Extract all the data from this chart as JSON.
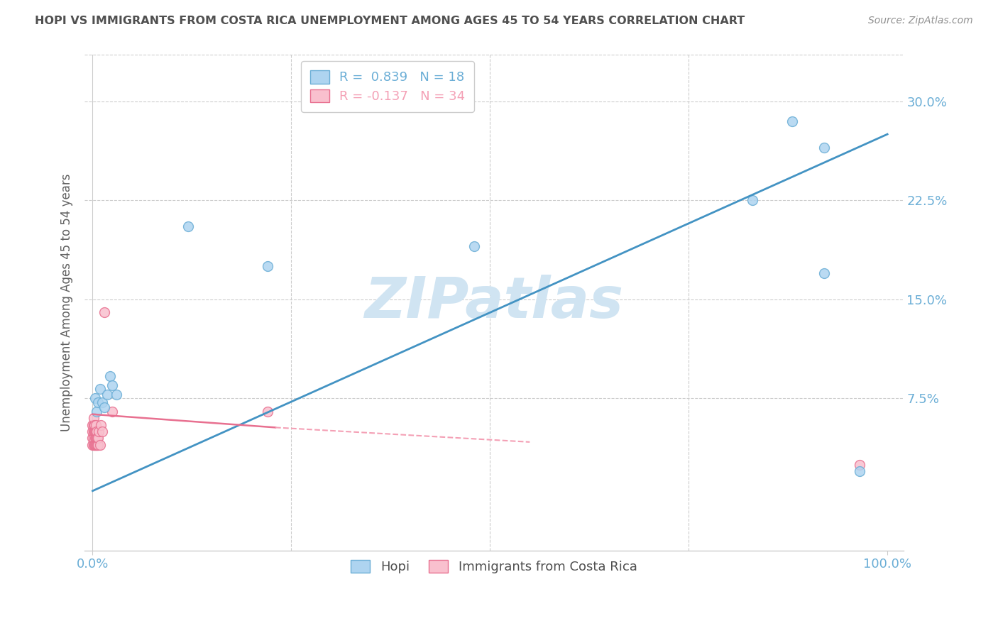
{
  "title": "HOPI VS IMMIGRANTS FROM COSTA RICA UNEMPLOYMENT AMONG AGES 45 TO 54 YEARS CORRELATION CHART",
  "source": "Source: ZipAtlas.com",
  "ylabel": "Unemployment Among Ages 45 to 54 years",
  "xlim": [
    -0.01,
    1.02
  ],
  "ylim": [
    -0.04,
    0.335
  ],
  "xticks": [
    0.0,
    1.0
  ],
  "xtick_labels": [
    "0.0%",
    "100.0%"
  ],
  "yticks": [
    0.075,
    0.15,
    0.225,
    0.3
  ],
  "ytick_labels": [
    "7.5%",
    "15.0%",
    "22.5%",
    "30.0%"
  ],
  "legend_entries": [
    {
      "label": "R =  0.839   N = 18",
      "color": "#6BAED6"
    },
    {
      "label": "R = -0.137   N = 34",
      "color": "#F4A0B5"
    }
  ],
  "hopi_x": [
    0.003,
    0.005,
    0.007,
    0.009,
    0.012,
    0.015,
    0.018,
    0.022,
    0.03,
    0.12,
    0.22,
    0.48,
    0.83,
    0.88,
    0.92,
    0.92,
    0.965,
    0.025
  ],
  "hopi_y": [
    0.075,
    0.065,
    0.072,
    0.082,
    0.072,
    0.068,
    0.078,
    0.092,
    0.078,
    0.205,
    0.175,
    0.19,
    0.225,
    0.285,
    0.265,
    0.17,
    0.02,
    0.085
  ],
  "costa_rica_x": [
    0.0,
    0.0,
    0.0,
    0.0,
    0.001,
    0.001,
    0.001,
    0.001,
    0.001,
    0.002,
    0.002,
    0.002,
    0.003,
    0.003,
    0.003,
    0.004,
    0.004,
    0.004,
    0.004,
    0.005,
    0.005,
    0.005,
    0.006,
    0.006,
    0.007,
    0.007,
    0.008,
    0.009,
    0.01,
    0.012,
    0.015,
    0.025,
    0.22,
    0.965
  ],
  "costa_rica_y": [
    0.04,
    0.045,
    0.05,
    0.055,
    0.04,
    0.045,
    0.05,
    0.055,
    0.06,
    0.04,
    0.05,
    0.055,
    0.04,
    0.045,
    0.05,
    0.04,
    0.045,
    0.05,
    0.055,
    0.04,
    0.045,
    0.05,
    0.04,
    0.045,
    0.04,
    0.045,
    0.05,
    0.04,
    0.055,
    0.05,
    0.14,
    0.065,
    0.065,
    0.025
  ],
  "hopi_color": "#AED4F0",
  "hopi_edge_color": "#6BAED6",
  "costa_rica_color": "#F9C0CE",
  "costa_rica_edge_color": "#E87090",
  "blue_line_color": "#4393C3",
  "pink_line_solid_color": "#E87090",
  "pink_line_dash_color": "#F4A0B5",
  "watermark": "ZIPatlas",
  "watermark_color": "#D0E4F2",
  "background_color": "#FFFFFF",
  "grid_color": "#CCCCCC",
  "title_color": "#505050",
  "axis_tick_color": "#6BAED6",
  "marker_size": 100,
  "blue_line_x0": 0.0,
  "blue_line_y0": 0.005,
  "blue_line_x1": 1.0,
  "blue_line_y1": 0.275,
  "pink_line_x0": 0.0,
  "pink_line_y0": 0.063,
  "pink_line_x1_solid": 0.23,
  "pink_line_y1_solid": 0.053,
  "pink_line_x1_dash": 0.55,
  "pink_line_y1_dash": 0.042
}
